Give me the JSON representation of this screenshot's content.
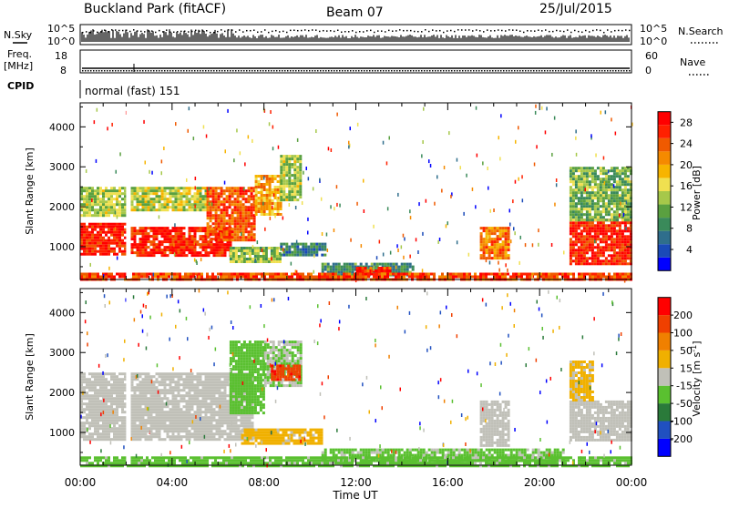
{
  "header": {
    "site": "Buckland Park (fitACF)",
    "beam": "Beam 07",
    "date": "25/Jul/2015"
  },
  "strips": {
    "nsky_label": "N.Sky",
    "nsky_top": "10^5",
    "nsky_bottom": "10^0",
    "nsearch_label": "N.Search",
    "nsearch_top": "10^5",
    "nsearch_bottom": "10^0",
    "freq_label_1": "Freq.",
    "freq_label_2": "[MHz]",
    "freq_top": "18",
    "freq_bottom": "8",
    "nave_label": "Nave",
    "nave_top": "60",
    "nave_bottom": "0",
    "cpid_label": "CPID",
    "cpid_value": "normal (fast) 151"
  },
  "colors": {
    "power": [
      "#0000ff",
      "#1a4ab8",
      "#2f6e8c",
      "#3a8a5a",
      "#5aa040",
      "#a6c84a",
      "#f0e050",
      "#f7b400",
      "#f58a00",
      "#f05a00",
      "#ff2000",
      "#ff0000"
    ],
    "velocity": [
      "#0000ff",
      "#2050c0",
      "#2a7a3a",
      "#5ac030",
      "#c0c0b8",
      "#f0b000",
      "#f08000",
      "#f04000",
      "#ff0000"
    ]
  },
  "chart_data": [
    {
      "type": "heatmap",
      "name": "power",
      "ylabel": "Slant Range [km]",
      "xlabel": "",
      "x_ticks": [
        "00:00",
        "04:00",
        "08:00",
        "12:00",
        "16:00",
        "20:00",
        "00:00"
      ],
      "xlim_hours": [
        0,
        24
      ],
      "ylim_km": [
        180,
        4600
      ],
      "y_ticks": [
        1000,
        2000,
        3000,
        4000
      ],
      "colorbar_label": "Power [dB]",
      "colorbar_ticks": [
        "4",
        "8",
        "12",
        "16",
        "20",
        "24",
        "28"
      ],
      "colorbar_range": [
        0,
        30
      ],
      "regions": [
        {
          "t0": 0.0,
          "t1": 2.0,
          "r0": 800,
          "r1": 1600,
          "value": 27
        },
        {
          "t0": 0.0,
          "t1": 2.0,
          "r0": 1800,
          "r1": 2500,
          "value": 14
        },
        {
          "t0": 2.2,
          "t1": 6.5,
          "r0": 800,
          "r1": 1500,
          "value": 27
        },
        {
          "t0": 2.2,
          "t1": 5.5,
          "r0": 1900,
          "r1": 2500,
          "value": 15
        },
        {
          "t0": 5.5,
          "t1": 7.6,
          "r0": 1200,
          "r1": 2500,
          "value": 24
        },
        {
          "t0": 7.6,
          "t1": 8.7,
          "r0": 1800,
          "r1": 2800,
          "value": 19
        },
        {
          "t0": 8.7,
          "t1": 9.6,
          "r0": 2200,
          "r1": 3300,
          "value": 14
        },
        {
          "t0": 6.5,
          "t1": 8.7,
          "r0": 600,
          "r1": 1000,
          "value": 13
        },
        {
          "t0": 8.7,
          "t1": 10.7,
          "r0": 800,
          "r1": 1100,
          "value": 8
        },
        {
          "t0": 10.5,
          "t1": 14.5,
          "r0": 300,
          "r1": 600,
          "value": 9
        },
        {
          "t0": 12.0,
          "t1": 13.5,
          "r0": 300,
          "r1": 500,
          "value": 26
        },
        {
          "t0": 17.4,
          "t1": 18.7,
          "r0": 700,
          "r1": 1500,
          "value": 22
        },
        {
          "t0": 21.3,
          "t1": 24.0,
          "r0": 600,
          "r1": 1700,
          "value": 27
        },
        {
          "t0": 21.3,
          "t1": 24.0,
          "r0": 1700,
          "r1": 3000,
          "value": 12
        },
        {
          "t0": 0.0,
          "t1": 24.0,
          "r0": 180,
          "r1": 350,
          "value": 25
        }
      ]
    },
    {
      "type": "heatmap",
      "name": "velocity",
      "ylabel": "Slant Range [km]",
      "xlabel": "Time UT",
      "x_ticks": [
        "00:00",
        "04:00",
        "08:00",
        "12:00",
        "16:00",
        "20:00",
        "00:00"
      ],
      "xlim_hours": [
        0,
        24
      ],
      "ylim_km": [
        180,
        4600
      ],
      "y_ticks": [
        1000,
        2000,
        3000,
        4000
      ],
      "colorbar_label": "Velocity [m s^-1]",
      "colorbar_ticks": [
        "200",
        "100",
        "50",
        "15",
        "-15",
        "-50",
        "-100",
        "-200"
      ],
      "colorbar_range": [
        -250,
        250
      ],
      "regions": [
        {
          "t0": 0.0,
          "t1": 2.0,
          "r0": 800,
          "r1": 2500,
          "value": 0
        },
        {
          "t0": 2.2,
          "t1": 7.5,
          "r0": 800,
          "r1": 2500,
          "value": 0
        },
        {
          "t0": 6.5,
          "t1": 8.0,
          "r0": 1500,
          "r1": 3300,
          "value": -60
        },
        {
          "t0": 8.0,
          "t1": 9.6,
          "r0": 2200,
          "r1": 3300,
          "value": -30
        },
        {
          "t0": 8.3,
          "t1": 9.6,
          "r0": 2300,
          "r1": 2700,
          "value": 180
        },
        {
          "t0": 7.0,
          "t1": 10.5,
          "r0": 700,
          "r1": 1100,
          "value": 45
        },
        {
          "t0": 10.5,
          "t1": 21.0,
          "r0": 300,
          "r1": 600,
          "value": -40
        },
        {
          "t0": 17.4,
          "t1": 18.7,
          "r0": 700,
          "r1": 1800,
          "value": 0
        },
        {
          "t0": 21.3,
          "t1": 24.0,
          "r0": 800,
          "r1": 1800,
          "value": 0
        },
        {
          "t0": 21.3,
          "t1": 22.3,
          "r0": 1800,
          "r1": 2800,
          "value": 40
        },
        {
          "t0": 0.0,
          "t1": 24.0,
          "r0": 180,
          "r1": 400,
          "value": -45
        }
      ]
    }
  ]
}
